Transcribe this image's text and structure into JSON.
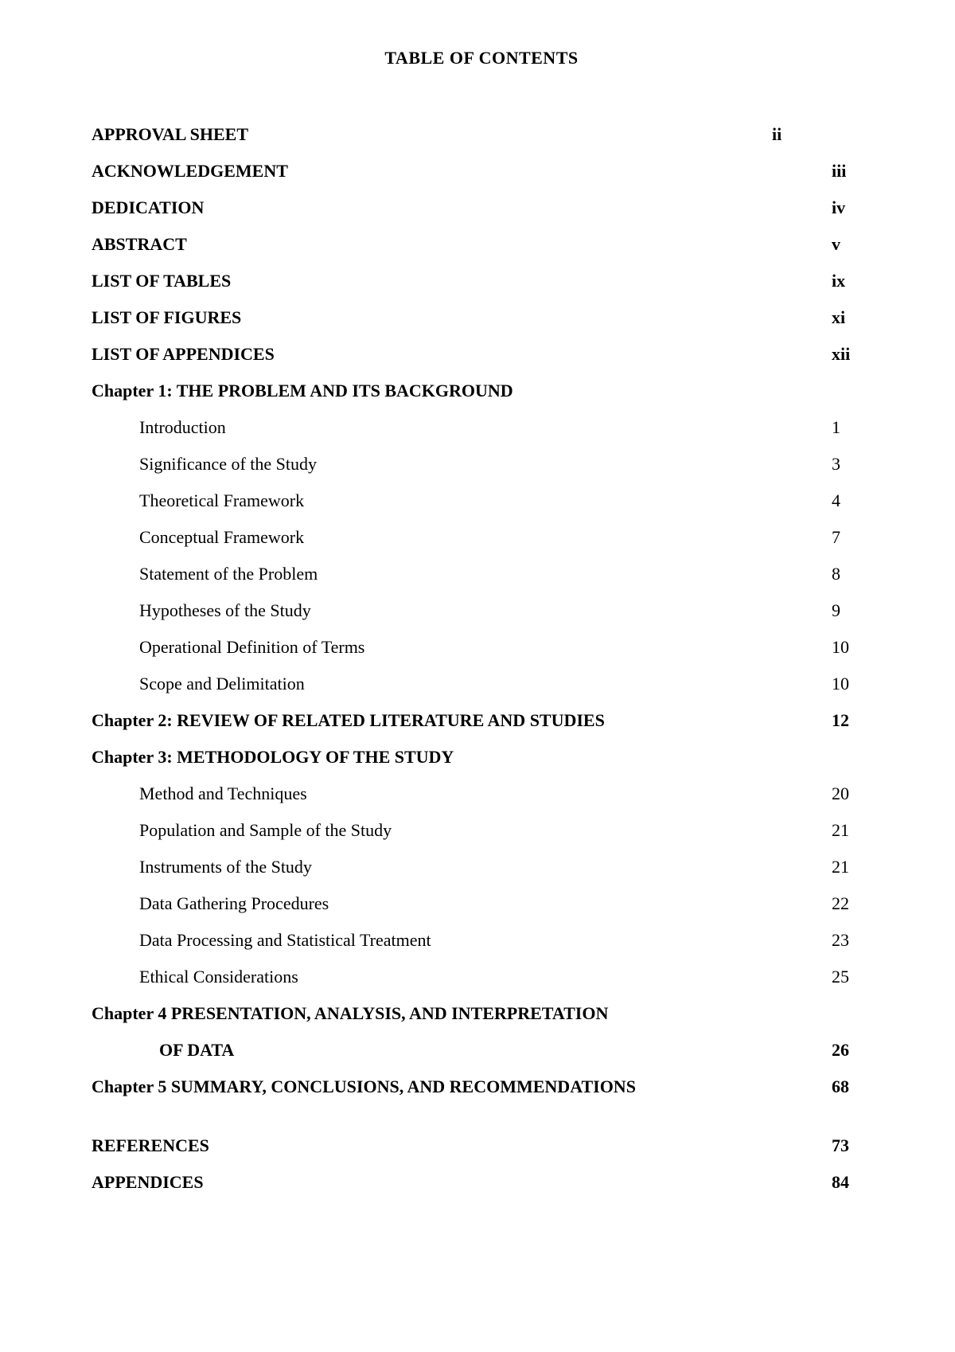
{
  "title": "TABLE OF CONTENTS",
  "rows": [
    {
      "label": "APPROVAL SHEET",
      "page": "ii",
      "bold": true,
      "indent": 0,
      "pageCol": "mid"
    },
    {
      "label": "ACKNOWLEDGEMENT",
      "page": "iii",
      "bold": true,
      "indent": 0
    },
    {
      "label": "DEDICATION",
      "page": "iv",
      "bold": true,
      "indent": 0
    },
    {
      "label": "ABSTRACT",
      "page": "v",
      "bold": true,
      "indent": 0
    },
    {
      "label": "LIST OF TABLES",
      "page": "ix",
      "bold": true,
      "indent": 0
    },
    {
      "label": "LIST OF FIGURES",
      "page": "xi",
      "bold": true,
      "indent": 0
    },
    {
      "label": "LIST OF APPENDICES",
      "page": "xii",
      "bold": true,
      "indent": 0
    },
    {
      "label": "Chapter 1: THE PROBLEM AND ITS BACKGROUND",
      "page": "",
      "bold": true,
      "indent": 0
    },
    {
      "label": "Introduction",
      "page": "1",
      "bold": false,
      "indent": 1
    },
    {
      "label": "Significance of the Study",
      "page": "3",
      "bold": false,
      "indent": 1
    },
    {
      "label": "Theoretical Framework",
      "page": "4",
      "bold": false,
      "indent": 1
    },
    {
      "label": "Conceptual Framework",
      "page": "7",
      "bold": false,
      "indent": 1
    },
    {
      "label": "Statement of the Problem",
      "page": "8",
      "bold": false,
      "indent": 1
    },
    {
      "label": "Hypotheses of the Study",
      "page": "9",
      "bold": false,
      "indent": 1
    },
    {
      "label": "Operational Definition of Terms",
      "page": "10",
      "bold": false,
      "indent": 1
    },
    {
      "label": "Scope and Delimitation",
      "page": "10",
      "bold": false,
      "indent": 1
    },
    {
      "label": "Chapter 2: REVIEW OF RELATED LITERATURE AND STUDIES",
      "page": "12",
      "bold": true,
      "indent": 0
    },
    {
      "label": "Chapter 3:  METHODOLOGY OF THE STUDY",
      "page": "",
      "bold": true,
      "indent": 0
    },
    {
      "label": "Method and Techniques",
      "page": "20",
      "bold": false,
      "indent": 1
    },
    {
      "label": "Population and Sample of the Study",
      "page": "21",
      "bold": false,
      "indent": 1
    },
    {
      "label": "Instruments of the Study",
      "page": "21",
      "bold": false,
      "indent": 1
    },
    {
      "label": "Data Gathering Procedures",
      "page": "22",
      "bold": false,
      "indent": 1
    },
    {
      "label": "Data Processing and Statistical Treatment",
      "page": "23",
      "bold": false,
      "indent": 1
    },
    {
      "label": "Ethical Considerations",
      "page": "25",
      "bold": false,
      "indent": 1
    },
    {
      "label": "Chapter 4 PRESENTATION, ANALYSIS, AND INTERPRETATION",
      "page": "",
      "bold": true,
      "indent": 0
    },
    {
      "label": "OF DATA",
      "page": "26",
      "bold": true,
      "indent": 2
    },
    {
      "label": "Chapter 5 SUMMARY, CONCLUSIONS, AND RECOMMENDATIONS",
      "page": "68",
      "bold": true,
      "indent": 0
    },
    {
      "label": "REFERENCES",
      "page": "73",
      "bold": true,
      "indent": 0,
      "gapAbove": true
    },
    {
      "label": "APPENDICES",
      "page": "84",
      "bold": true,
      "indent": 0
    }
  ]
}
